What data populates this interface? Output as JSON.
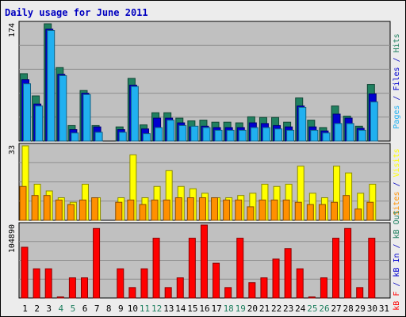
{
  "colors": {
    "background": "#ececec",
    "plot_bg": "#c0c0c0",
    "grid": "#8d8d8d",
    "title": "#0000c0",
    "weekend_tick": "#208060",
    "hits": "#208060",
    "files": "#0000d0",
    "pages": "#20b0f0",
    "visits": "#ffff00",
    "sites": "#ff9000",
    "kb_f": "#ff0000",
    "kb_in": "#0000d0",
    "kb_out": "#208060"
  },
  "chart_data": {
    "type": "bar",
    "title": "Daily usage for June 2011",
    "days": [
      "1",
      "2",
      "3",
      "4",
      "5",
      "6",
      "7",
      "8",
      "9",
      "10",
      "11",
      "12",
      "13",
      "14",
      "15",
      "16",
      "17",
      "18",
      "19",
      "20",
      "21",
      "22",
      "23",
      "24",
      "25",
      "26",
      "27",
      "28",
      "29",
      "30",
      "31"
    ],
    "weekend_days": [
      "4",
      "5",
      "11",
      "12",
      "18",
      "19",
      "25",
      "26"
    ],
    "panels": [
      {
        "name": "usage",
        "axis_max_label": "174",
        "ymax": 174,
        "series": [
          {
            "name": "Hits",
            "values": [
              100,
              67,
              174,
              109,
              23,
              75,
              23,
              0,
              21,
              93,
              24,
              42,
              42,
              34,
              30,
              31,
              28,
              28,
              27,
              36,
              35,
              35,
              28,
              64,
              31,
              20,
              52,
              37,
              22,
              84,
              0
            ]
          },
          {
            "name": "Files",
            "values": [
              91,
              55,
              166,
              99,
              17,
              71,
              21,
              0,
              17,
              83,
              18,
              34,
              34,
              27,
              21,
              22,
              20,
              20,
              20,
              27,
              26,
              23,
              21,
              52,
              21,
              15,
              40,
              34,
              19,
              70,
              0
            ]
          },
          {
            "name": "Pages",
            "values": [
              85,
              52,
              164,
              97,
              12,
              69,
              13,
              0,
              13,
              81,
              11,
              20,
              31,
              23,
              22,
              20,
              16,
              16,
              16,
              20,
              20,
              18,
              16,
              50,
              16,
              12,
              26,
              26,
              16,
              58,
              0
            ]
          }
        ]
      },
      {
        "name": "visitors",
        "axis_max_label": "33",
        "ymax": 33,
        "series": [
          {
            "name": "Visits",
            "values": [
              33,
              16,
              13,
              10,
              8,
              16,
              10,
              0,
              10,
              29,
              10,
              15,
              22,
              15,
              14,
              12,
              10,
              10,
              11,
              12,
              16,
              15,
              16,
              24,
              12,
              10,
              24,
              21,
              12,
              16,
              0
            ]
          },
          {
            "name": "Sites",
            "values": [
              15,
              11,
              11,
              9,
              7,
              9,
              10,
              0,
              8,
              9,
              7,
              9,
              9,
              10,
              10,
              10,
              10,
              9,
              9,
              6,
              9,
              9,
              9,
              8,
              7,
              7,
              8,
              11,
              5,
              8,
              0
            ]
          }
        ]
      },
      {
        "name": "traffic",
        "axis_max_label": "104890",
        "ymax": 104890,
        "series": [
          {
            "name": "KB F",
            "values": [
              73000,
              42000,
              42000,
              1500,
              29000,
              29000,
              100000,
              0,
              42000,
              15000,
              42000,
              86000,
              15000,
              29000,
              86000,
              104890,
              50000,
              15000,
              86000,
              22000,
              29000,
              56000,
              71000,
              42000,
              1500,
              29000,
              86000,
              100000,
              15000,
              86000,
              0
            ]
          }
        ]
      }
    ],
    "side_labels": [
      {
        "panel": "usage",
        "parts": [
          {
            "text": "Pages",
            "color_key": "pages"
          },
          {
            "text": " / ",
            "color_key": "title"
          },
          {
            "text": "Files",
            "color_key": "files"
          },
          {
            "text": " / ",
            "color_key": "title"
          },
          {
            "text": "Hits",
            "color_key": "hits"
          }
        ]
      },
      {
        "panel": "visitors",
        "parts": [
          {
            "text": "Sites",
            "color_key": "sites"
          },
          {
            "text": " / ",
            "color_key": "title"
          },
          {
            "text": "Visits",
            "color_key": "visits"
          }
        ]
      },
      {
        "panel": "traffic",
        "parts": [
          {
            "text": "kB F",
            "color_key": "kb_f"
          },
          {
            "text": " / ",
            "color_key": "title"
          },
          {
            "text": "kB In",
            "color_key": "kb_in"
          },
          {
            "text": " / ",
            "color_key": "title"
          },
          {
            "text": "kB Out",
            "color_key": "kb_out"
          }
        ]
      }
    ]
  }
}
